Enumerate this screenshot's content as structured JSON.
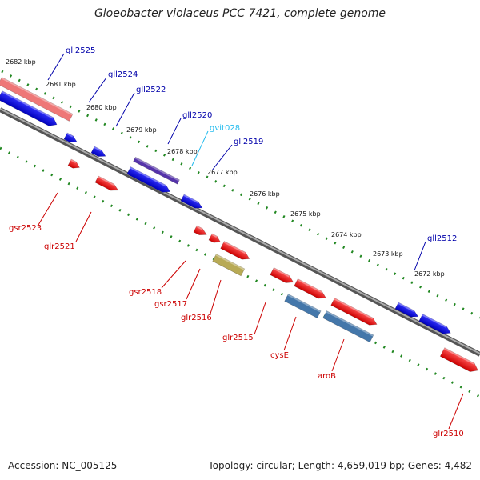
{
  "title": "Gloeobacter violaceus PCC 7421, complete genome",
  "footer": {
    "accession": "Accession: NC_005125",
    "summary": "Topology: circular; Length: 4,659,019 bp; Genes: 4,482"
  },
  "ticks": [
    "2682 kbp",
    "2681 kbp",
    "2680 kbp",
    "2679 kbp",
    "2678 kbp",
    "2677 kbp",
    "2676 kbp",
    "2675 kbp",
    "2674 kbp",
    "2673 kbp",
    "2672 kbp"
  ],
  "labels_top": [
    {
      "name": "gll2525",
      "color": "#0000aa"
    },
    {
      "name": "gll2524",
      "color": "#0000aa"
    },
    {
      "name": "gll2522",
      "color": "#0000aa"
    },
    {
      "name": "gll2520",
      "color": "#0000aa"
    },
    {
      "name": "gvit028",
      "color": "#22bbee"
    },
    {
      "name": "gll2519",
      "color": "#0000aa"
    },
    {
      "name": "gll2512",
      "color": "#0000aa"
    }
  ],
  "labels_bottom": [
    {
      "name": "gsr2523",
      "color": "#cc0000"
    },
    {
      "name": "glr2521",
      "color": "#cc0000"
    },
    {
      "name": "gsr2518",
      "color": "#cc0000"
    },
    {
      "name": "gsr2517",
      "color": "#cc0000"
    },
    {
      "name": "glr2516",
      "color": "#cc0000"
    },
    {
      "name": "glr2515",
      "color": "#cc0000"
    },
    {
      "name": "cysE",
      "color": "#cc0000"
    },
    {
      "name": "aroB",
      "color": "#cc0000"
    },
    {
      "name": "glr2510",
      "color": "#cc0000"
    }
  ],
  "colors": {
    "forward_gene": "#ff0000",
    "reverse_gene": "#0000ff",
    "backbone": "#888888",
    "tick_marks": "#228822"
  }
}
